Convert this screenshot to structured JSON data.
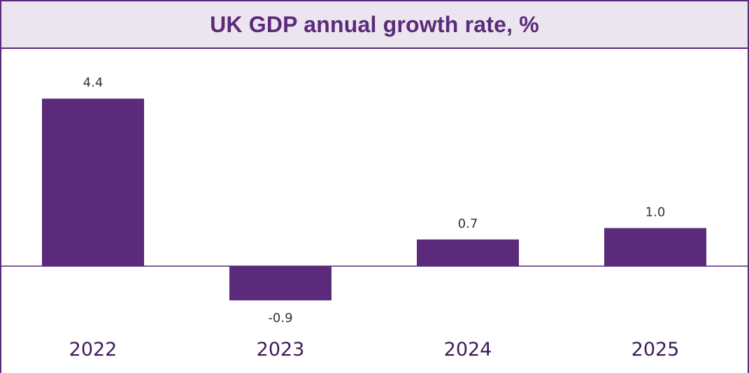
{
  "chart_data": {
    "type": "bar",
    "title": "UK GDP annual growth rate, %",
    "categories": [
      "2022",
      "2023",
      "2024",
      "2025"
    ],
    "values": [
      4.4,
      -0.9,
      0.7,
      1.0
    ],
    "data_labels": [
      "4.4",
      "-0.9",
      "0.7",
      "1.0"
    ],
    "xlabel": "",
    "ylabel": "",
    "grid": false,
    "legend": "none",
    "colors": {
      "bar": "#5b2a7b",
      "title_text": "#5b2a7b",
      "title_background": "#ebe5ef",
      "axis": "#5b2a7b"
    }
  }
}
